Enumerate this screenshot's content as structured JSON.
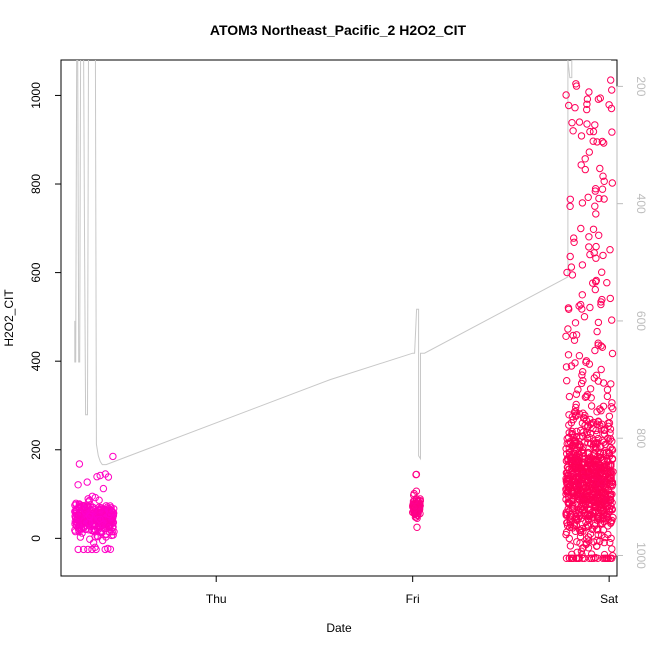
{
  "chart_data": {
    "type": "scatter",
    "title": "ATOM3 Northeast_Pacific_2 H2O2_CIT",
    "xlabel": "Date",
    "ylabel": "H2O2_CIT",
    "x_ticks": [
      "Thu",
      "Fri",
      "Sat"
    ],
    "x_tick_days": [
      1,
      2,
      3
    ],
    "xlim": [
      0.21,
      3.04
    ],
    "ylim": [
      -85,
      1080
    ],
    "y_ticks": [
      0,
      200,
      400,
      600,
      800,
      1000
    ],
    "y2_ticks": [
      200,
      400,
      600,
      800,
      1000
    ],
    "y2lim": [
      1035,
      155
    ],
    "grid": false,
    "series": [
      {
        "values_kind": "points",
        "color_early": "#ff00cc",
        "color_late": "#ff0055",
        "clusters": [
          {
            "x_start": 0.28,
            "x_end": 0.48,
            "y_center": 45,
            "y_spread": 40,
            "max": 185,
            "min": -25,
            "n": 320,
            "hue_t": 0.0
          },
          {
            "x_start": 2.0,
            "x_end": 2.04,
            "y_center": 70,
            "y_spread": 25,
            "max": 218,
            "min": 25,
            "n": 70,
            "hue_t": 0.5
          },
          {
            "x_start": 2.78,
            "x_end": 3.02,
            "y_center": 130,
            "y_spread": 160,
            "max": 1040,
            "min": -45,
            "n": 900,
            "hue_t": 0.9
          }
        ]
      },
      {
        "values_kind": "line",
        "color": "#c8c8c8",
        "axis": "right",
        "x": [
          0.28,
          0.28,
          0.285,
          0.29,
          0.295,
          0.3,
          0.305,
          0.31,
          0.315,
          0.325,
          0.33,
          0.335,
          0.345,
          0.35,
          0.36,
          0.365,
          0.37,
          0.37,
          0.375,
          0.38,
          0.385,
          0.39,
          0.4,
          0.41,
          0.42,
          0.44,
          1.58,
          2.0,
          2.0,
          2.01,
          2.02,
          2.03,
          2.03,
          2.04,
          2.04,
          2.05,
          2.06,
          2.06,
          2.79,
          2.79,
          2.8,
          2.81,
          2.81,
          2.82,
          2.83,
          2.84,
          2.85,
          2.86,
          2.87,
          2.88,
          2.88,
          2.89,
          2.9,
          2.91,
          2.92,
          2.93,
          2.94,
          2.95,
          2.96,
          2.97,
          2.98,
          2.99,
          3.0,
          3.01
        ],
        "y": [
          600,
          670,
          670,
          140,
          140,
          670,
          670,
          140,
          140,
          140,
          480,
          760,
          760,
          140,
          140,
          140,
          100,
          130,
          140,
          140,
          140,
          810,
          830,
          840,
          845,
          845,
          700,
          655,
          655,
          655,
          580,
          580,
          830,
          835,
          655,
          655,
          655,
          655,
          525,
          155,
          185,
          185,
          155,
          155,
          155,
          155,
          155,
          155,
          155,
          155,
          155,
          155,
          155,
          155,
          155,
          155,
          155,
          155,
          155,
          155,
          155,
          155,
          155,
          155
        ]
      }
    ]
  }
}
